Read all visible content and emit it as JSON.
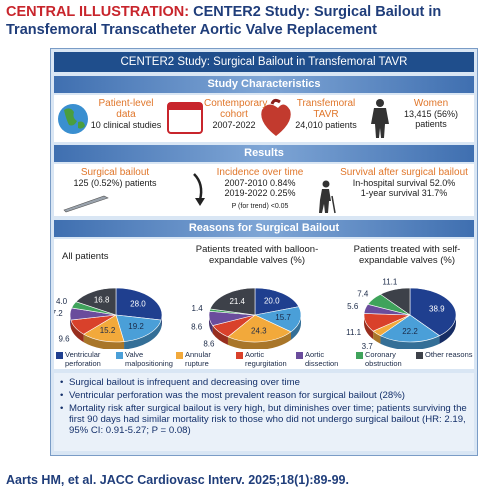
{
  "header": {
    "label": "CENTRAL ILLUSTRATION:",
    "title": "CENTER2 Study: Surgical Bailout in Transfemoral Transcatheter Aortic Valve Replacement"
  },
  "panel_title": "CENTER2 Study: Surgical Bailout in Transfemoral TAVR",
  "characteristics": {
    "heading": "Study Characteristics",
    "items": [
      {
        "title": "Patient-level data",
        "text": "10 clinical studies"
      },
      {
        "title": "Contemporary cohort",
        "text": "2007-2022"
      },
      {
        "title": "Transfemoral TAVR",
        "text": "24,010 patients"
      },
      {
        "title": "Women",
        "text": "13,415 (56%) patients"
      }
    ]
  },
  "results": {
    "heading": "Results",
    "items": [
      {
        "title": "Surgical bailout",
        "lines": [
          "125 (0.52%) patients"
        ]
      },
      {
        "title": "Incidence over time",
        "lines": [
          "2007-2010 0.84%",
          "2019-2022 0.25%"
        ],
        "note": "P (for trend) <0.05"
      },
      {
        "title": "Survival after surgical bailout",
        "lines": [
          "In-hospital survival 52.0%",
          "1-year survival 31.7%"
        ]
      }
    ]
  },
  "reasons": {
    "heading": "Reasons for Surgical Bailout",
    "legend": [
      {
        "name": "Ventricular perforation",
        "color": "#1f3f8f"
      },
      {
        "name": "Valve malpositioning",
        "color": "#4a9fd8"
      },
      {
        "name": "Annular rupture",
        "color": "#f2a93b"
      },
      {
        "name": "Aortic regurgitation",
        "color": "#d9412b"
      },
      {
        "name": "Aortic dissection",
        "color": "#6a4c9c"
      },
      {
        "name": "Coronary obstruction",
        "color": "#3fa35b"
      },
      {
        "name": "Other reasons",
        "color": "#3d4149"
      }
    ],
    "pies": [
      {
        "title": "All patients",
        "values": [
          28.0,
          19.2,
          15.2,
          9.6,
          7.2,
          4.0,
          16.8
        ],
        "value_labels": [
          "28.0",
          "19.2",
          "15.2",
          "9.6",
          "7.2",
          "4.0",
          "16.8"
        ]
      },
      {
        "title": "Patients treated with balloon-expandable valves (%)",
        "values": [
          20.0,
          15.7,
          24.3,
          8.6,
          8.6,
          1.4,
          21.4
        ],
        "value_labels": [
          "20.0",
          "15.7",
          "24.3",
          "8.6",
          "8.6",
          "1.4",
          "21.4"
        ]
      },
      {
        "title": "Patients treated with self-expandable valves (%)",
        "values": [
          38.9,
          22.2,
          3.7,
          11.1,
          5.6,
          7.4,
          11.1
        ],
        "value_labels": [
          "38.9",
          "22.2",
          "3.7",
          "11.1",
          "5.6",
          "7.4",
          "11.1"
        ]
      }
    ]
  },
  "bullets": [
    "Surgical bailout is infrequent and decreasing over time",
    "Ventricular perforation was the most prevalent reason for surgical bailout (28%)",
    "Mortality risk after surgical bailout is very high, but diminishes over time; patients surviving the first 90 days had similar mortality risk to those who did not undergo surgical bailout (HR: 2.19, 95% CI: 0.91-5.27; P = 0.08)"
  ],
  "citation": "Aarts HM, et al. JACC Cardiovasc Interv. 2025;18(1):89-99."
}
